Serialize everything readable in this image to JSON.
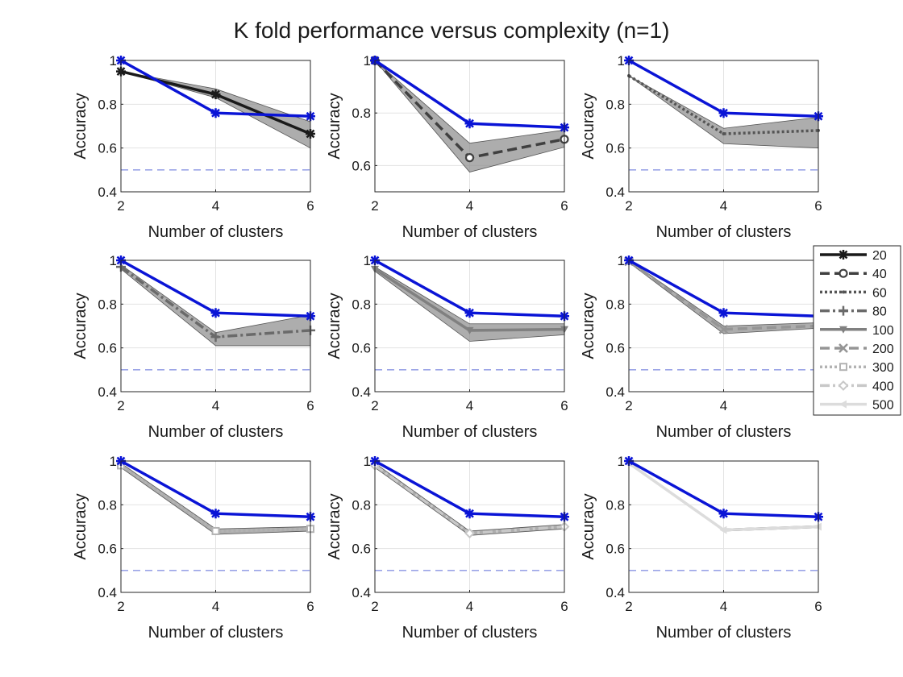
{
  "figure": {
    "title": "K fold performance versus complexity (n=1)"
  },
  "chart_data": {
    "type": "line",
    "title": "K fold performance versus complexity (n=1)",
    "xlabel": "Number of clusters",
    "ylabel": "Accuracy",
    "x": [
      2,
      4,
      6
    ],
    "xticks": [
      2,
      4,
      6
    ],
    "grid": true,
    "chance_level": 0.5,
    "reference_series": {
      "name": "reference",
      "color": "#0a14d6",
      "values": [
        1.0,
        0.76,
        0.745
      ]
    },
    "legend": {
      "placement": "right",
      "entries": [
        {
          "label": "20",
          "color": "#1a1a1a",
          "dash": "solid",
          "marker": "star"
        },
        {
          "label": "40",
          "color": "#404040",
          "dash": "dashed",
          "marker": "circle"
        },
        {
          "label": "60",
          "color": "#555555",
          "dash": "dotted",
          "marker": "point"
        },
        {
          "label": "80",
          "color": "#6a6a6a",
          "dash": "dashdot",
          "marker": "plus"
        },
        {
          "label": "100",
          "color": "#808080",
          "dash": "solid",
          "marker": "triangle-down"
        },
        {
          "label": "200",
          "color": "#959595",
          "dash": "dashed",
          "marker": "x"
        },
        {
          "label": "300",
          "color": "#b3b3b3",
          "dash": "dotted",
          "marker": "square"
        },
        {
          "label": "400",
          "color": "#c8c8c8",
          "dash": "dashdot",
          "marker": "diamond"
        },
        {
          "label": "500",
          "color": "#dcdcdc",
          "dash": "solid",
          "marker": "triangle-left"
        }
      ]
    },
    "panels": [
      {
        "name": "20",
        "ylim": [
          0.4,
          1.0
        ],
        "yticks": [
          0.4,
          0.6,
          0.8,
          1.0
        ],
        "ytick_labels": [
          "0.4",
          "0.6",
          "0.8",
          "1"
        ],
        "series": {
          "values": [
            0.95,
            0.845,
            0.665
          ],
          "band_low": [
            0.95,
            0.83,
            0.6
          ],
          "band_high": [
            0.95,
            0.87,
            0.72
          ]
        }
      },
      {
        "name": "40",
        "ylim": [
          0.5,
          1.0
        ],
        "yticks": [
          0.6,
          0.8,
          1.0
        ],
        "ytick_labels": [
          "0.6",
          "0.8",
          "1"
        ],
        "series": {
          "values": [
            1.0,
            0.63,
            0.7
          ],
          "band_low": [
            1.0,
            0.575,
            0.67
          ],
          "band_high": [
            1.0,
            0.685,
            0.735
          ]
        }
      },
      {
        "name": "60",
        "ylim": [
          0.4,
          1.0
        ],
        "yticks": [
          0.4,
          0.6,
          0.8,
          1.0
        ],
        "ytick_labels": [
          "0.4",
          "0.6",
          "0.8",
          "1"
        ],
        "series": {
          "values": [
            0.93,
            0.665,
            0.68
          ],
          "band_low": [
            0.93,
            0.62,
            0.6
          ],
          "band_high": [
            0.93,
            0.69,
            0.74
          ]
        }
      },
      {
        "name": "80",
        "ylim": [
          0.4,
          1.0
        ],
        "yticks": [
          0.4,
          0.6,
          0.8,
          1.0
        ],
        "ytick_labels": [
          "0.4",
          "0.6",
          "0.8",
          "1"
        ],
        "series": {
          "values": [
            0.97,
            0.65,
            0.68
          ],
          "band_low": [
            0.96,
            0.61,
            0.61
          ],
          "band_high": [
            0.98,
            0.67,
            0.75
          ]
        }
      },
      {
        "name": "100",
        "ylim": [
          0.4,
          1.0
        ],
        "yticks": [
          0.4,
          0.6,
          0.8,
          1.0
        ],
        "ytick_labels": [
          "0.4",
          "0.6",
          "0.8",
          "1"
        ],
        "series": {
          "values": [
            0.96,
            0.68,
            0.685
          ],
          "band_low": [
            0.95,
            0.63,
            0.66
          ],
          "band_high": [
            0.97,
            0.71,
            0.71
          ]
        }
      },
      {
        "name": "200",
        "ylim": [
          0.4,
          1.0
        ],
        "yticks": [
          0.4,
          0.6,
          0.8,
          1.0
        ],
        "ytick_labels": [
          "0.4",
          "0.6",
          "0.8",
          "1"
        ],
        "series": {
          "values": [
            0.995,
            0.685,
            0.7
          ],
          "band_low": [
            0.99,
            0.665,
            0.69
          ],
          "band_high": [
            1.0,
            0.7,
            0.715
          ]
        }
      },
      {
        "name": "300",
        "ylim": [
          0.4,
          1.0
        ],
        "yticks": [
          0.4,
          0.6,
          0.8,
          1.0
        ],
        "ytick_labels": [
          "0.4",
          "0.6",
          "0.8",
          "1"
        ],
        "series": {
          "values": [
            0.98,
            0.68,
            0.69
          ],
          "band_low": [
            0.97,
            0.665,
            0.68
          ],
          "band_high": [
            0.99,
            0.69,
            0.7
          ]
        }
      },
      {
        "name": "400",
        "ylim": [
          0.4,
          1.0
        ],
        "yticks": [
          0.4,
          0.6,
          0.8,
          1.0
        ],
        "ytick_labels": [
          "0.4",
          "0.6",
          "0.8",
          "1"
        ],
        "series": {
          "values": [
            0.98,
            0.67,
            0.7
          ],
          "band_low": [
            0.97,
            0.66,
            0.69
          ],
          "band_high": [
            0.99,
            0.68,
            0.71
          ]
        }
      },
      {
        "name": "500",
        "ylim": [
          0.4,
          1.0
        ],
        "yticks": [
          0.4,
          0.6,
          0.8,
          1.0
        ],
        "ytick_labels": [
          "0.4",
          "0.6",
          "0.8",
          "1"
        ],
        "series": {
          "values": [
            0.99,
            0.685,
            0.7
          ],
          "band_low": [
            0.99,
            0.68,
            0.695
          ],
          "band_high": [
            0.99,
            0.69,
            0.705
          ]
        }
      }
    ]
  }
}
